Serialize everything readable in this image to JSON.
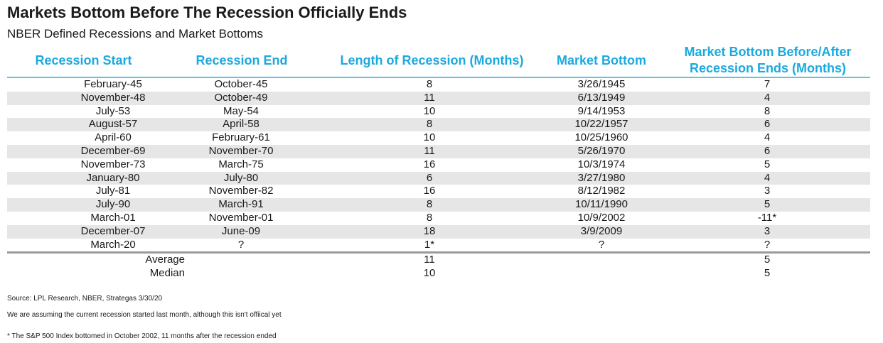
{
  "title": "Markets Bottom Before The Recession Officially Ends",
  "subtitle": "NBER Defined Recessions and Market Bottoms",
  "headers": {
    "recession_start": "Recession Start",
    "recession_end": "Recession End",
    "length": "Length of Recession (Months)",
    "market_bottom": "Market Bottom",
    "before_after_line1": "Market Bottom Before/After",
    "before_after_line2": "Recession Ends (Months)"
  },
  "rows": [
    {
      "start": "February-45",
      "end": "October-45",
      "length": "8",
      "bottom": "3/26/1945",
      "diff": "7"
    },
    {
      "start": "November-48",
      "end": "October-49",
      "length": "11",
      "bottom": "6/13/1949",
      "diff": "4"
    },
    {
      "start": "July-53",
      "end": "May-54",
      "length": "10",
      "bottom": "9/14/1953",
      "diff": "8"
    },
    {
      "start": "August-57",
      "end": "April-58",
      "length": "8",
      "bottom": "10/22/1957",
      "diff": "6"
    },
    {
      "start": "April-60",
      "end": "February-61",
      "length": "10",
      "bottom": "10/25/1960",
      "diff": "4"
    },
    {
      "start": "December-69",
      "end": "November-70",
      "length": "11",
      "bottom": "5/26/1970",
      "diff": "6"
    },
    {
      "start": "November-73",
      "end": "March-75",
      "length": "16",
      "bottom": "10/3/1974",
      "diff": "5"
    },
    {
      "start": "January-80",
      "end": "July-80",
      "length": "6",
      "bottom": "3/27/1980",
      "diff": "4"
    },
    {
      "start": "July-81",
      "end": "November-82",
      "length": "16",
      "bottom": "8/12/1982",
      "diff": "3"
    },
    {
      "start": "July-90",
      "end": "March-91",
      "length": "8",
      "bottom": "10/11/1990",
      "diff": "5"
    },
    {
      "start": "March-01",
      "end": "November-01",
      "length": "8",
      "bottom": "10/9/2002",
      "diff": "-11*"
    },
    {
      "start": "December-07",
      "end": "June-09",
      "length": "18",
      "bottom": "3/9/2009",
      "diff": "3"
    },
    {
      "start": "March-20",
      "end": "?",
      "length": "1*",
      "bottom": "?",
      "diff": "?"
    }
  ],
  "summary": [
    {
      "label": "Average",
      "length": "11",
      "diff": "5"
    },
    {
      "label": "Median",
      "length": "10",
      "diff": "5"
    }
  ],
  "footnotes": {
    "source": "Source: LPL Research, NBER, Strategas 3/30/20",
    "assumption": "We are assuming the current recession started last month, although this isn't offiical yet",
    "sp500": "* The S&P 500 Index bottomed in October 2002, 11 months after the recession ended"
  },
  "colors": {
    "header": "#1ba9de",
    "rule": "#5cc3e8",
    "shade": "#e6e6e6"
  }
}
